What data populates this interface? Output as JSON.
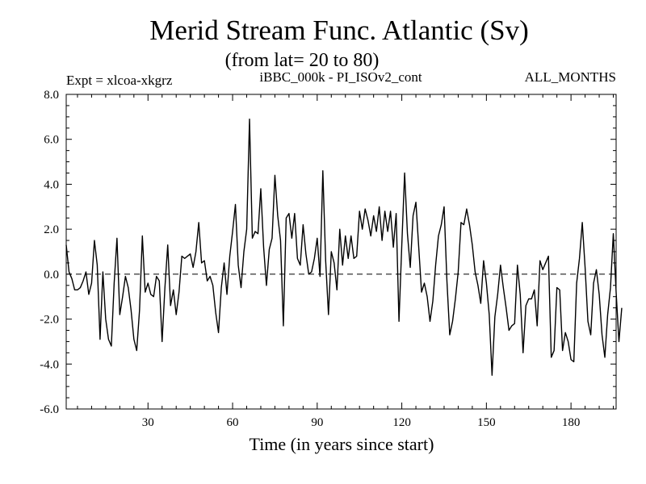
{
  "chart_data": {
    "type": "line",
    "title": "Merid Stream Func. Atlantic (Sv)",
    "subtitle": "(from lat= 20 to 80)",
    "expt_label": "Expt = xlcoa-xkgrz",
    "run_label": "iBBC_000k - PI_ISOv2_cont",
    "months_label": "ALL_MONTHS",
    "xlabel": "Time (in years since start)",
    "ylabel": "",
    "xlim": [
      1,
      196
    ],
    "ylim": [
      -6.0,
      8.0
    ],
    "yticks": [
      "8.0",
      "6.0",
      "4.0",
      "2.0",
      "0.0",
      "-2.0",
      "-4.0",
      "-6.0"
    ],
    "ytick_values": [
      8,
      6,
      4,
      2,
      0,
      -2,
      -4,
      -6
    ],
    "xticks": [
      "30",
      "60",
      "90",
      "120",
      "150",
      "180"
    ],
    "xtick_values": [
      30,
      60,
      90,
      120,
      150,
      180
    ],
    "reference_line": 0.0,
    "grid": false,
    "series_color": "#000000",
    "x_start": 1,
    "values": [
      1.3,
      0.1,
      -0.2,
      -0.7,
      -0.7,
      -0.6,
      -0.3,
      0.1,
      -0.9,
      -0.4,
      1.5,
      0.4,
      -2.9,
      0.1,
      -2.0,
      -2.9,
      -3.2,
      -0.4,
      1.6,
      -1.8,
      -1.0,
      -0.1,
      -0.6,
      -1.6,
      -2.9,
      -3.4,
      -1.6,
      1.7,
      -0.8,
      -0.4,
      -0.9,
      -1.0,
      -0.1,
      -0.3,
      -3.0,
      -0.6,
      1.3,
      -1.4,
      -0.7,
      -1.8,
      -0.8,
      0.8,
      0.7,
      0.8,
      0.9,
      0.3,
      1.0,
      2.3,
      0.5,
      0.6,
      -0.3,
      -0.1,
      -0.5,
      -1.7,
      -2.6,
      -0.6,
      0.5,
      -0.9,
      0.8,
      1.9,
      3.1,
      0.4,
      -0.6,
      1.0,
      2.0,
      6.9,
      1.6,
      1.9,
      1.8,
      3.8,
      1.2,
      -0.5,
      1.1,
      1.6,
      4.4,
      2.6,
      1.5,
      -2.3,
      2.5,
      2.7,
      1.6,
      2.7,
      0.7,
      0.4,
      2.2,
      0.9,
      0.0,
      0.1,
      0.7,
      1.6,
      -0.1,
      4.6,
      0.6,
      -1.8,
      1.0,
      0.5,
      -0.7,
      2.0,
      0.4,
      1.7,
      0.7,
      1.7,
      0.7,
      0.8,
      2.8,
      2.0,
      2.9,
      2.4,
      1.7,
      2.6,
      1.9,
      3.0,
      1.5,
      2.8,
      1.9,
      2.8,
      1.2,
      2.7,
      -2.1,
      1.3,
      4.5,
      1.8,
      0.3,
      2.6,
      3.2,
      1.2,
      -0.8,
      -0.4,
      -1.0,
      -2.1,
      -1.2,
      0.4,
      1.7,
      2.2,
      3.0,
      -0.3,
      -2.7,
      -2.1,
      -1.1,
      0.1,
      2.3,
      2.2,
      2.9,
      2.2,
      1.3,
      0.1,
      -0.5,
      -1.3,
      0.6,
      -0.4,
      -1.8,
      -4.5,
      -1.9,
      -0.9,
      0.4,
      -0.6,
      -1.5,
      -2.5,
      -2.3,
      -2.2,
      0.4,
      -0.9,
      -3.5,
      -1.4,
      -1.1,
      -1.1,
      -0.7,
      -2.3,
      0.6,
      0.2,
      0.5,
      0.8,
      -3.7,
      -3.4,
      -0.6,
      -0.7,
      -3.4,
      -2.6,
      -3.0,
      -3.8,
      -3.9,
      -0.4,
      0.7,
      2.3,
      0.3,
      -2.1,
      -2.7,
      -0.4,
      0.2,
      -0.9,
      -2.7,
      -3.7,
      -1.8,
      -0.6,
      1.8,
      -0.8,
      -3.0,
      -1.5
    ]
  }
}
